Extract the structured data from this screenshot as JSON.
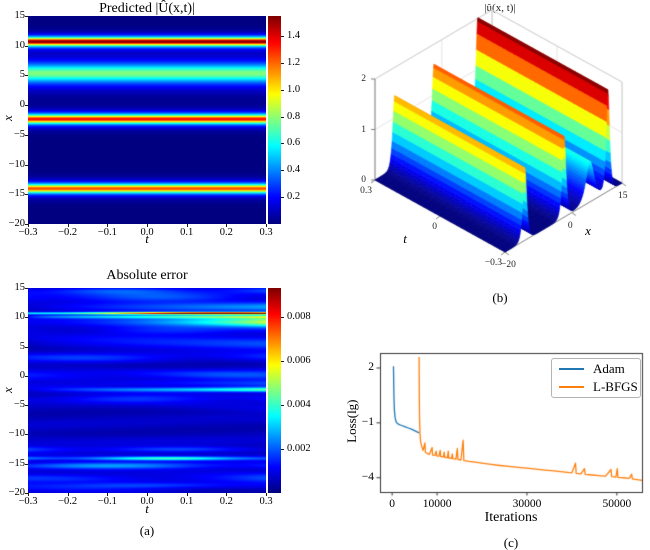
{
  "figure": {
    "background": "#ffffff",
    "colormap": "jet"
  },
  "chart_data": [
    {
      "id": "predicted",
      "type": "heatmap",
      "title": "Predicted |Û(x,t)|",
      "xlabel": "t",
      "ylabel": "x",
      "xlim": [
        -0.3,
        0.3
      ],
      "ylim": [
        -20,
        15
      ],
      "xtick_vals": [
        -0.3,
        -0.2,
        -0.1,
        0.0,
        0.1,
        0.2,
        0.3
      ],
      "xtick_labels": [
        "−0.3",
        "−0.2",
        "−0.1",
        "0.0",
        "0.1",
        "0.2",
        "0.3"
      ],
      "ytick_vals": [
        15,
        10,
        5,
        0,
        -5,
        -10,
        -15,
        -20
      ],
      "ytick_labels": [
        "15",
        "10",
        "5",
        "0",
        "−5",
        "−10",
        "−15",
        "−20"
      ],
      "colormap": "jet",
      "vmin": 0,
      "vmax": 1.55,
      "colorbar_tick_vals": [
        1.4,
        1.2,
        1.0,
        0.8,
        0.6,
        0.4,
        0.2
      ],
      "colorbar_tick_labels": [
        "1.4",
        "1.2",
        "1.0",
        "0.8",
        "0.6",
        "0.4",
        "0.2"
      ],
      "solitons": [
        {
          "center": 10.75,
          "amplitude": 1.55,
          "width": 0.45
        },
        {
          "center": 5.4,
          "amplitude": 0.78,
          "width": 1.1
        },
        {
          "center": -2.35,
          "amplitude": 1.35,
          "width": 0.5
        },
        {
          "center": -14.1,
          "amplitude": 1.25,
          "width": 0.5
        }
      ]
    },
    {
      "id": "surface",
      "type": "surface",
      "title": "|û(x, t)|",
      "xlabel": "x",
      "tlabel": "t",
      "xlim": [
        -20,
        15
      ],
      "tlim": [
        -0.3,
        0.3
      ],
      "zlim": [
        0,
        2
      ],
      "xtick_vals": [
        -20,
        0,
        15
      ],
      "xtick_labels": [
        "−20",
        "0",
        "15"
      ],
      "ttick_vals": [
        0.3,
        0,
        -0.3
      ],
      "ttick_labels": [
        "0.3",
        "0",
        "−0.3"
      ],
      "ztick_vals": [
        0,
        1,
        2
      ],
      "ztick_labels": [
        "0",
        "1",
        "2"
      ],
      "colormap": "jet",
      "solitons": [
        {
          "center": 10.75,
          "amplitude": 2.0,
          "width": 0.45
        },
        {
          "center": 5.4,
          "amplitude": 0.8,
          "width": 1.1
        },
        {
          "center": -2.35,
          "amplitude": 1.6,
          "width": 0.5
        },
        {
          "center": -14.1,
          "amplitude": 1.45,
          "width": 0.5
        }
      ],
      "caption": "(b)"
    },
    {
      "id": "error",
      "type": "heatmap",
      "title": "Absolute error",
      "xlabel": "t",
      "ylabel": "x",
      "xlim": [
        -0.3,
        0.3
      ],
      "ylim": [
        -20,
        15
      ],
      "xtick_vals": [
        -0.3,
        -0.2,
        -0.1,
        0.0,
        0.1,
        0.2,
        0.3
      ],
      "xtick_labels": [
        "−0.3",
        "−0.2",
        "−0.1",
        "0.0",
        "0.1",
        "0.2",
        "0.3"
      ],
      "ytick_vals": [
        15,
        10,
        5,
        0,
        -5,
        -10,
        -15,
        -20
      ],
      "ytick_labels": [
        "15",
        "10",
        "5",
        "0",
        "−5",
        "−10",
        "−15",
        "−20"
      ],
      "colormap": "jet",
      "vmin": 0,
      "vmax": 0.0093,
      "colorbar_tick_vals": [
        0.008,
        0.006,
        0.004,
        0.002
      ],
      "colorbar_tick_labels": [
        "0.008",
        "0.006",
        "0.004",
        "0.002"
      ],
      "features": [
        {
          "c": 10.75,
          "w": 0.2,
          "a": 0.0093,
          "grow": 0,
          "freq": 0.7,
          "ph": 0.3
        },
        {
          "c": 10.15,
          "w": 0.3,
          "a": 0.0034,
          "grow": 0.4,
          "freq": 0,
          "ph": 0
        },
        {
          "c": 9.3,
          "w": 0.85,
          "a": 0.0046,
          "grow": 1.7,
          "freq": 0,
          "ph": 0
        },
        {
          "c": 11.9,
          "w": 0.8,
          "a": 0.0018,
          "grow": 0.9,
          "freq": 0,
          "ph": 0
        },
        {
          "c": 13.5,
          "w": 0.9,
          "a": 0.0014,
          "grow": 0,
          "freq": 1.1,
          "ph": 1.2
        },
        {
          "c": 14.6,
          "w": 0.6,
          "a": 0.0011,
          "grow": 0,
          "freq": 1.4,
          "ph": 2.6
        },
        {
          "c": -2.35,
          "w": 0.4,
          "a": 0.0037,
          "grow": 1.0,
          "freq": 0,
          "ph": 0
        },
        {
          "c": -1.3,
          "w": 0.6,
          "a": 0.0013,
          "grow": 1.3,
          "freq": 0,
          "ph": 0
        },
        {
          "c": -3.9,
          "w": 0.7,
          "a": 0.0009,
          "grow": 0,
          "freq": 1.3,
          "ph": 2.0
        },
        {
          "c": -14.15,
          "w": 0.32,
          "a": 0.0032,
          "grow": 0,
          "freq": 1.2,
          "ph": 1.0
        },
        {
          "c": -15.4,
          "w": 0.55,
          "a": 0.0019,
          "grow": 0,
          "freq": 1.0,
          "ph": 2.5
        },
        {
          "c": -12.6,
          "w": 0.5,
          "a": 0.0013,
          "grow": 0,
          "freq": 1.3,
          "ph": 0.5
        },
        {
          "c": -17.6,
          "w": 0.8,
          "a": 0.0012,
          "grow": 0,
          "freq": 0.9,
          "ph": 4.0
        },
        {
          "c": -18.8,
          "w": 0.5,
          "a": 0.001,
          "grow": 0,
          "freq": 1.1,
          "ph": 1.7
        },
        {
          "c": 5.4,
          "w": 1.0,
          "a": 0.0011,
          "grow": 0.6,
          "freq": 0,
          "ph": 0
        },
        {
          "c": 3.2,
          "w": 0.8,
          "a": 0.0008,
          "grow": 0,
          "freq": 1.2,
          "ph": 3.1
        },
        {
          "c": 0.3,
          "w": 0.9,
          "a": 0.0009,
          "grow": 0,
          "freq": 1.0,
          "ph": 5.0
        },
        {
          "c": 7.8,
          "w": 0.7,
          "a": 0.0008,
          "grow": 0,
          "freq": 1.3,
          "ph": 0.9
        }
      ],
      "caption": "(a)"
    },
    {
      "id": "loss",
      "type": "line",
      "xlabel": "Iterations",
      "ylabel": "Loss(lg)",
      "xlim": [
        -2700,
        55600
      ],
      "ylim": [
        -4.78,
        2.82
      ],
      "xtick_vals": [
        0,
        10000,
        30000,
        50000
      ],
      "xtick_labels": [
        "0",
        "10000",
        "30000",
        "50000"
      ],
      "ytick_vals": [
        2,
        -1,
        -4
      ],
      "ytick_labels": [
        "2",
        "−1",
        "−4"
      ],
      "legend": {
        "position": "upper right",
        "entries": [
          {
            "label": "Adam",
            "color": "#1f77b4"
          },
          {
            "label": "L-BFGS",
            "color": "#ff7f0e"
          }
        ]
      },
      "series": [
        {
          "name": "Adam",
          "color": "#1f77b4",
          "points": [
            [
              300,
              2.1
            ],
            [
              350,
              1.2
            ],
            [
              420,
              0.3
            ],
            [
              500,
              -0.3
            ],
            [
              650,
              -0.7
            ],
            [
              850,
              -0.92
            ],
            [
              1100,
              -1.02
            ],
            [
              1500,
              -1.08
            ],
            [
              2000,
              -1.13
            ],
            [
              2800,
              -1.2
            ],
            [
              3600,
              -1.28
            ],
            [
              4400,
              -1.36
            ],
            [
              5200,
              -1.45
            ],
            [
              6000,
              -1.55
            ]
          ]
        },
        {
          "name": "L-BFGS",
          "color": "#ff7f0e",
          "points": [
            [
              6000,
              2.6
            ],
            [
              6050,
              0.5
            ],
            [
              6100,
              -0.8
            ],
            [
              6200,
              -1.6
            ],
            [
              6350,
              -2.05
            ],
            [
              6600,
              -2.3
            ],
            [
              6900,
              -2.5
            ],
            [
              7300,
              -2.1
            ],
            [
              7400,
              -2.62
            ],
            [
              7900,
              -2.68
            ],
            [
              8300,
              -2.72
            ],
            [
              8900,
              -2.35
            ],
            [
              9000,
              -2.76
            ],
            [
              9500,
              -2.78
            ],
            [
              9800,
              -2.55
            ],
            [
              9900,
              -2.8
            ],
            [
              10400,
              -2.82
            ],
            [
              10700,
              -2.5
            ],
            [
              10800,
              -2.84
            ],
            [
              11400,
              -2.86
            ],
            [
              11600,
              -2.6
            ],
            [
              11700,
              -2.88
            ],
            [
              12300,
              -2.9
            ],
            [
              12500,
              -2.55
            ],
            [
              12600,
              -2.92
            ],
            [
              13200,
              -2.94
            ],
            [
              13400,
              -2.7
            ],
            [
              13500,
              -2.96
            ],
            [
              14200,
              -2.98
            ],
            [
              14500,
              -2.4
            ],
            [
              14650,
              -3.0
            ],
            [
              15300,
              -3.03
            ],
            [
              15800,
              -1.95
            ],
            [
              15950,
              -3.06
            ],
            [
              17000,
              -3.1
            ],
            [
              18500,
              -3.15
            ],
            [
              20000,
              -3.2
            ],
            [
              22000,
              -3.27
            ],
            [
              24000,
              -3.33
            ],
            [
              26000,
              -3.38
            ],
            [
              28000,
              -3.43
            ],
            [
              30000,
              -3.48
            ],
            [
              32000,
              -3.53
            ],
            [
              34000,
              -3.58
            ],
            [
              36000,
              -3.63
            ],
            [
              38000,
              -3.68
            ],
            [
              40000,
              -3.73
            ],
            [
              40800,
              -3.2
            ],
            [
              40950,
              -3.76
            ],
            [
              42000,
              -3.79
            ],
            [
              42800,
              -3.5
            ],
            [
              42950,
              -3.82
            ],
            [
              44500,
              -3.85
            ],
            [
              46000,
              -3.88
            ],
            [
              47500,
              -3.91
            ],
            [
              48700,
              -3.55
            ],
            [
              48850,
              -3.94
            ],
            [
              49800,
              -3.96
            ],
            [
              50100,
              -3.5
            ],
            [
              50250,
              -3.98
            ],
            [
              51500,
              -4.0
            ],
            [
              52800,
              -4.03
            ],
            [
              53300,
              -3.8
            ],
            [
              53450,
              -4.06
            ],
            [
              54500,
              -4.1
            ],
            [
              55600,
              -4.15
            ]
          ]
        }
      ],
      "caption": "(c)"
    }
  ]
}
